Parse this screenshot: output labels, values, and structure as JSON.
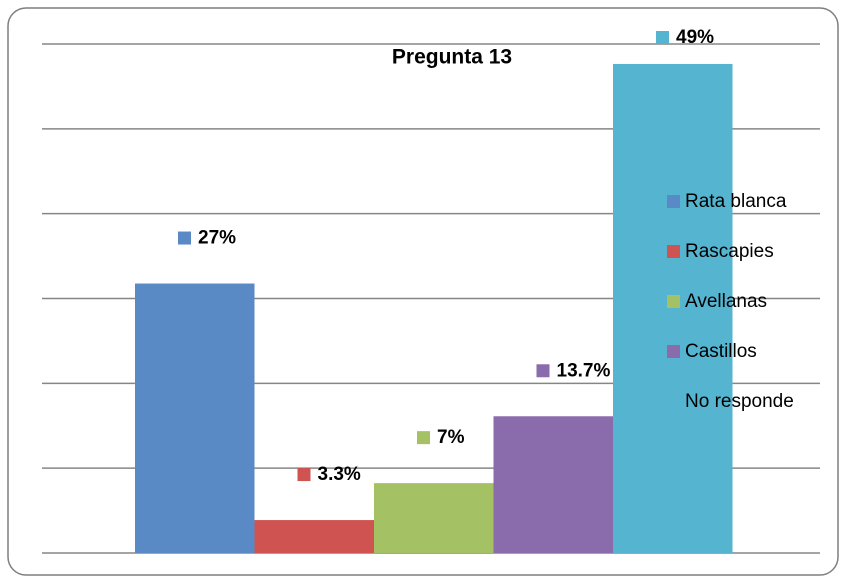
{
  "chart_data": {
    "type": "bar",
    "title": "Pregunta  13",
    "categories": [
      "Rata blanca",
      "Rascapies",
      "Avellanas",
      "Castillos",
      "No responde"
    ],
    "values": [
      27,
      3.3,
      7,
      13.7,
      49
    ],
    "value_labels": [
      "27%",
      "3.3%",
      "7%",
      "13.7%",
      "49%"
    ],
    "colors": [
      "#5a8ac6",
      "#cf5350",
      "#a4c263",
      "#8a6bab",
      "#55b5d0"
    ],
    "ylim": [
      0,
      51
    ],
    "yticks": [
      0,
      8.5,
      17,
      25.5,
      34,
      42.5,
      51
    ],
    "grid": true,
    "legend": "right"
  }
}
